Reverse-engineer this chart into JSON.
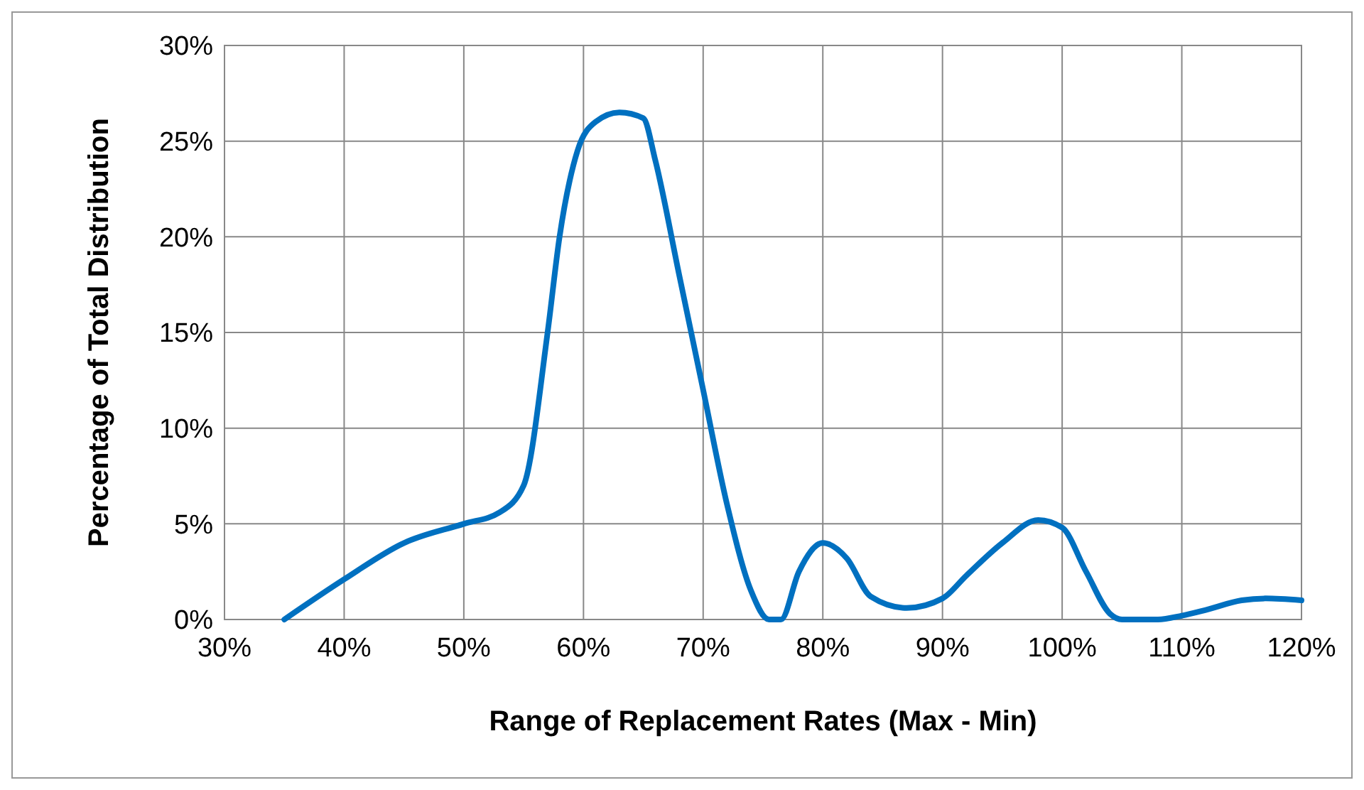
{
  "chart_data": {
    "type": "line",
    "xlabel": "Range of Replacement Rates (Max - Min)",
    "ylabel": "Percentage of Total Distribution",
    "x": [
      35,
      40,
      45,
      50,
      53,
      55,
      57,
      58,
      59.5,
      61,
      63,
      65,
      66,
      68,
      70,
      72,
      74,
      75.5,
      76.5,
      78,
      80,
      82,
      84,
      87,
      90,
      92,
      95,
      98,
      100,
      102,
      104,
      105,
      108,
      110,
      112,
      115,
      117,
      120
    ],
    "series": [
      {
        "color": "#0070c0",
        "values": [
          0,
          2.1,
          4,
          5,
          5.6,
          7,
          15,
          20,
          24.5,
          26,
          26.5,
          26.2,
          24,
          18,
          12,
          6,
          1.5,
          0,
          0,
          2.5,
          4,
          3.2,
          1.2,
          0.6,
          1.1,
          2.3,
          4,
          5.2,
          4.8,
          2.5,
          0.3,
          0,
          0,
          0.2,
          0.5,
          1,
          1.1,
          1
        ]
      }
    ],
    "xlim": [
      30,
      120
    ],
    "ylim": [
      0,
      30
    ],
    "xticks": [
      {
        "value": 30,
        "label": "30%"
      },
      {
        "value": 40,
        "label": "40%"
      },
      {
        "value": 50,
        "label": "50%"
      },
      {
        "value": 60,
        "label": "60%"
      },
      {
        "value": 70,
        "label": "70%"
      },
      {
        "value": 80,
        "label": "80%"
      },
      {
        "value": 90,
        "label": "90%"
      },
      {
        "value": 100,
        "label": "100%"
      },
      {
        "value": 110,
        "label": "110%"
      },
      {
        "value": 120,
        "label": "120%"
      }
    ],
    "yticks": [
      {
        "value": 0,
        "label": "0%"
      },
      {
        "value": 5,
        "label": "5%"
      },
      {
        "value": 10,
        "label": "10%"
      },
      {
        "value": 15,
        "label": "15%"
      },
      {
        "value": 20,
        "label": "20%"
      },
      {
        "value": 25,
        "label": "25%"
      },
      {
        "value": 30,
        "label": "30%"
      }
    ],
    "grid": true,
    "marker": "none",
    "line_style": "solid"
  }
}
